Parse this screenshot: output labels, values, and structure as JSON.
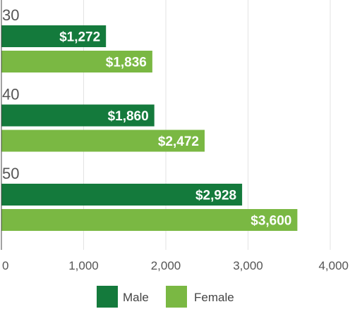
{
  "chart_data": {
    "type": "bar",
    "orientation": "horizontal",
    "categories": [
      "30",
      "40",
      "50"
    ],
    "series": [
      {
        "name": "Male",
        "values": [
          1272,
          1860,
          2928
        ],
        "labels": [
          "$1,272",
          "$1,860",
          "$2,928"
        ],
        "color": "#147a3c"
      },
      {
        "name": "Female",
        "values": [
          1836,
          2472,
          3600
        ],
        "labels": [
          "$1,836",
          "$2,472",
          "$3,600"
        ],
        "color": "#7ab843"
      }
    ],
    "xlim": [
      0,
      4000
    ],
    "xticks": [
      {
        "value": 0,
        "label": "0"
      },
      {
        "value": 1000,
        "label": "1,000"
      },
      {
        "value": 2000,
        "label": "2,000"
      },
      {
        "value": 3000,
        "label": "3,000"
      },
      {
        "value": 4000,
        "label": "4,000"
      }
    ],
    "grid": true,
    "legend_position": "bottom"
  }
}
